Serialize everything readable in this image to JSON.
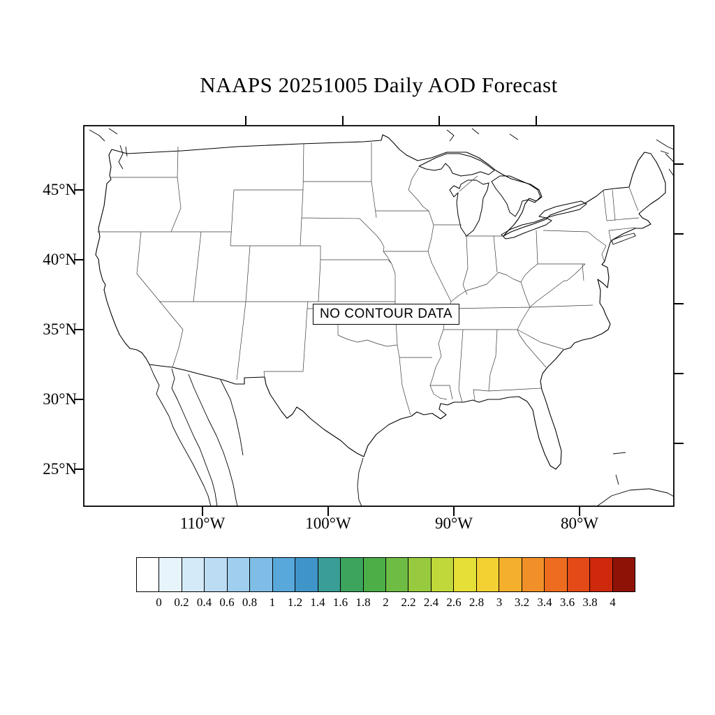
{
  "title": "NAAPS 20251005 Daily AOD Forecast",
  "map": {
    "no_data_label": "NO CONTOUR DATA",
    "region": "Continental United States"
  },
  "axes": {
    "lat_labels": [
      "45°N",
      "40°N",
      "35°N",
      "30°N",
      "25°N"
    ],
    "lon_labels": [
      "110°W",
      "100°W",
      "90°W",
      "80°W"
    ]
  },
  "colorbar": {
    "labels": [
      "0",
      "0.2",
      "0.4",
      "0.6",
      "0.8",
      "1",
      "1.2",
      "1.4",
      "1.6",
      "1.8",
      "2",
      "2.2",
      "2.4",
      "2.6",
      "2.8",
      "3",
      "3.2",
      "3.4",
      "3.6",
      "3.8",
      "4"
    ],
    "colors": [
      "#ffffff",
      "#e8f4fb",
      "#d4eaf8",
      "#bcdcf4",
      "#9fceee",
      "#7fbde6",
      "#58a8db",
      "#3f94c8",
      "#3a9e96",
      "#3da45e",
      "#4bae47",
      "#6fbc45",
      "#97ca3f",
      "#c1d83a",
      "#e6df36",
      "#f3d133",
      "#f4b02d",
      "#f19029",
      "#ed6c20",
      "#e34a17",
      "#ce280d",
      "#8f1206"
    ]
  }
}
